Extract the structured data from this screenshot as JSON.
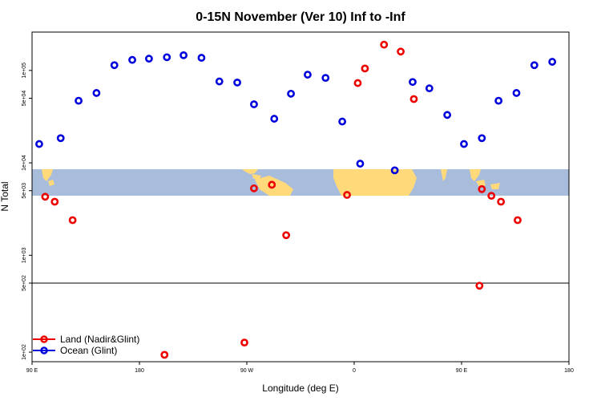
{
  "chart_data": {
    "type": "scatter",
    "title": "0-15N November (Ver 10)   Inf to -Inf",
    "xlabel": "Longitude (deg E)",
    "ylabel": "N Total",
    "x_tick_labels": [
      {
        "x": 90,
        "label": "90 E"
      },
      {
        "x": 180,
        "label": "180"
      },
      {
        "x": 270,
        "label": "90 W"
      },
      {
        "x": 360,
        "label": "0"
      },
      {
        "x": 450,
        "label": "90 E"
      },
      {
        "x": 540,
        "label": "180"
      }
    ],
    "xlim": [
      90,
      540
    ],
    "upper_panel": {
      "scale": "log",
      "ylim": [
        500,
        260000
      ],
      "y_ticks": [
        {
          "value": 500,
          "label": "5e+02"
        },
        {
          "value": 1000,
          "label": "1e+03"
        },
        {
          "value": 5000,
          "label": "5e+03"
        },
        {
          "value": 10000,
          "label": "1e+04"
        },
        {
          "value": 50000,
          "label": "5e+04"
        },
        {
          "value": 100000,
          "label": "1e+05"
        }
      ]
    },
    "lower_panel": {
      "scale": "log",
      "ylim": [
        80,
        500
      ],
      "y_ticks": [
        {
          "value": 500,
          "label": "5e+02"
        },
        {
          "value": 100,
          "label": "1e+02"
        }
      ]
    },
    "map_band": {
      "lat_range": [
        0,
        15
      ],
      "ocean_color": "#a8bcdc",
      "land_color": "#ffd97a"
    },
    "legend_position": "bottom-left",
    "series": [
      {
        "name": "Land (Nadir&Glint)",
        "color": "#ee0000",
        "points": [
          {
            "x": 101,
            "y": 4300
          },
          {
            "x": 109,
            "y": 3800
          },
          {
            "x": 124,
            "y": 2400
          },
          {
            "x": 276,
            "y": 5300
          },
          {
            "x": 291,
            "y": 5800
          },
          {
            "x": 303,
            "y": 1650
          },
          {
            "x": 354,
            "y": 4500
          },
          {
            "x": 363,
            "y": 73000
          },
          {
            "x": 369,
            "y": 105000
          },
          {
            "x": 385,
            "y": 190000
          },
          {
            "x": 399,
            "y": 160000
          },
          {
            "x": 410,
            "y": 49000
          },
          {
            "x": 465,
            "y": 470
          },
          {
            "x": 467,
            "y": 5200
          },
          {
            "x": 475,
            "y": 4400
          },
          {
            "x": 483,
            "y": 3800
          },
          {
            "x": 497,
            "y": 2400
          },
          {
            "x": 268,
            "y": 125
          },
          {
            "x": 201,
            "y": 94
          }
        ]
      },
      {
        "name": "Ocean (Glint)",
        "color": "#0000dd",
        "points": [
          {
            "x": 96,
            "y": 16000
          },
          {
            "x": 114,
            "y": 18500
          },
          {
            "x": 129,
            "y": 47000
          },
          {
            "x": 144,
            "y": 57000
          },
          {
            "x": 159,
            "y": 114000
          },
          {
            "x": 174,
            "y": 130000
          },
          {
            "x": 188,
            "y": 134000
          },
          {
            "x": 203,
            "y": 139000
          },
          {
            "x": 217,
            "y": 146000
          },
          {
            "x": 232,
            "y": 137000
          },
          {
            "x": 247,
            "y": 76000
          },
          {
            "x": 262,
            "y": 74000
          },
          {
            "x": 276,
            "y": 43000
          },
          {
            "x": 293,
            "y": 30000
          },
          {
            "x": 307,
            "y": 56000
          },
          {
            "x": 321,
            "y": 90000
          },
          {
            "x": 336,
            "y": 83000
          },
          {
            "x": 350,
            "y": 28000
          },
          {
            "x": 365,
            "y": 9800
          },
          {
            "x": 394,
            "y": 8300
          },
          {
            "x": 409,
            "y": 75000
          },
          {
            "x": 423,
            "y": 64000
          },
          {
            "x": 438,
            "y": 33000
          },
          {
            "x": 452,
            "y": 16000
          },
          {
            "x": 467,
            "y": 18500
          },
          {
            "x": 481,
            "y": 47000
          },
          {
            "x": 496,
            "y": 57000
          },
          {
            "x": 511,
            "y": 114000
          },
          {
            "x": 526,
            "y": 124000
          }
        ]
      }
    ]
  }
}
